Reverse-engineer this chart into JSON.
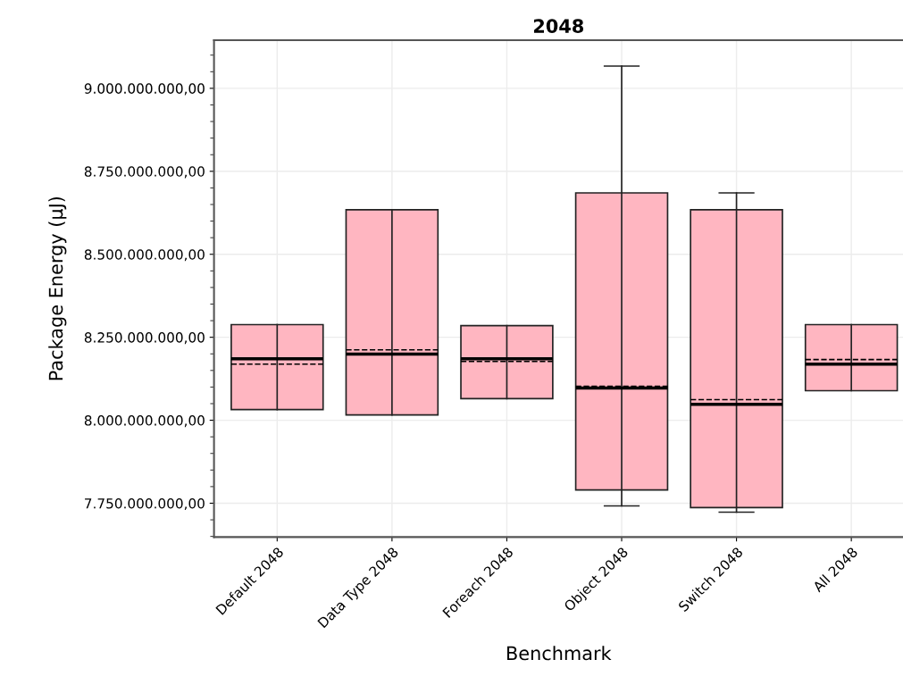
{
  "chart_data": {
    "type": "box",
    "title": "2048",
    "xlabel": "Benchmark",
    "ylabel": "Package Energy (µJ)",
    "categories": [
      "Default 2048",
      "Data Type 2048",
      "Foreach 2048",
      "Object 2048",
      "Switch 2048",
      "All 2048"
    ],
    "color": "#ffb6c1",
    "boxes": [
      {
        "low": 8032000000,
        "q1": 8032000000,
        "median": 8185000000,
        "q3": 8288000000,
        "high": 8288000000,
        "mean": 8169000000
      },
      {
        "low": 8016000000,
        "q1": 8016000000,
        "median": 8199000000,
        "q3": 8634000000,
        "high": 8634000000,
        "mean": 8212000000
      },
      {
        "low": 8065000000,
        "q1": 8065000000,
        "median": 8185000000,
        "q3": 8285000000,
        "high": 8285000000,
        "mean": 8177000000
      },
      {
        "low": 7742000000,
        "q1": 7790000000,
        "median": 8097000000,
        "q3": 8685000000,
        "high": 9067000000,
        "mean": 8102000000
      },
      {
        "low": 7723000000,
        "q1": 7737000000,
        "median": 8048000000,
        "q3": 8634000000,
        "high": 8685000000,
        "mean": 8062000000
      },
      {
        "low": 8089000000,
        "q1": 8089000000,
        "median": 8169000000,
        "q3": 8288000000,
        "high": 8288000000,
        "mean": 8183000000
      }
    ],
    "ylim": [
      7648000000,
      9145000000
    ],
    "yticks": [
      {
        "value": 7750000000,
        "label": "7.750.000.000,00"
      },
      {
        "value": 8000000000,
        "label": "8.000.000.000,00"
      },
      {
        "value": 8250000000,
        "label": "8.250.000.000,00"
      },
      {
        "value": 8500000000,
        "label": "8.500.000.000,00"
      },
      {
        "value": 8750000000,
        "label": "8.750.000.000,00"
      },
      {
        "value": 9000000000,
        "label": "9.000.000.000,00"
      }
    ],
    "grid": true
  }
}
